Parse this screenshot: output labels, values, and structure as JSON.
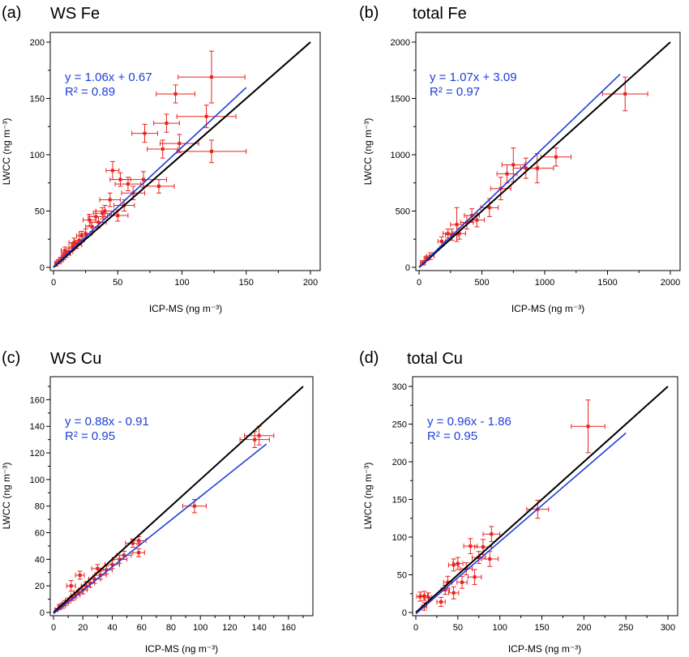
{
  "chart_data": [
    {
      "type": "scatter",
      "panel_label": "(a)",
      "title": "WS Fe",
      "xlabel": "ICP-MS (ng m⁻³)",
      "ylabel": "LWCC (ng m⁻³)",
      "xlim": [
        0,
        200
      ],
      "ylim": [
        0,
        200
      ],
      "xticks": [
        0,
        50,
        100,
        150,
        200
      ],
      "yticks": [
        0,
        50,
        100,
        150,
        200
      ],
      "equation": "y = 1.06x + 0.67",
      "r2": "R² = 0.89",
      "fit_line": {
        "slope": 1.06,
        "intercept": 0.67,
        "x_range": [
          0,
          150
        ]
      },
      "one_to_one": {
        "x_range": [
          0,
          200
        ]
      },
      "points": [
        {
          "x": 123,
          "y": 169,
          "xerr": 26,
          "yerr": 23
        },
        {
          "x": 95,
          "y": 154,
          "xerr": 15,
          "yerr": 8
        },
        {
          "x": 119,
          "y": 134,
          "xerr": 23,
          "yerr": 10
        },
        {
          "x": 88,
          "y": 128,
          "xerr": 10,
          "yerr": 8
        },
        {
          "x": 71,
          "y": 119,
          "xerr": 10,
          "yerr": 8
        },
        {
          "x": 123,
          "y": 103,
          "xerr": 27,
          "yerr": 10
        },
        {
          "x": 98,
          "y": 110,
          "xerr": 15,
          "yerr": 8
        },
        {
          "x": 85,
          "y": 105,
          "xerr": 12,
          "yerr": 8
        },
        {
          "x": 46,
          "y": 86,
          "xerr": 5,
          "yerr": 8
        },
        {
          "x": 70,
          "y": 78,
          "xerr": 18,
          "yerr": 7
        },
        {
          "x": 58,
          "y": 74,
          "xerr": 10,
          "yerr": 6
        },
        {
          "x": 82,
          "y": 72,
          "xerr": 12,
          "yerr": 6
        },
        {
          "x": 52,
          "y": 78,
          "xerr": 8,
          "yerr": 6
        },
        {
          "x": 44,
          "y": 60,
          "xerr": 8,
          "yerr": 6
        },
        {
          "x": 38,
          "y": 48,
          "xerr": 7,
          "yerr": 5
        },
        {
          "x": 55,
          "y": 55,
          "xerr": 8,
          "yerr": 5
        },
        {
          "x": 50,
          "y": 46,
          "xerr": 8,
          "yerr": 5
        },
        {
          "x": 33,
          "y": 45,
          "xerr": 6,
          "yerr": 5
        },
        {
          "x": 30,
          "y": 36,
          "xerr": 5,
          "yerr": 4
        },
        {
          "x": 28,
          "y": 42,
          "xerr": 5,
          "yerr": 5
        },
        {
          "x": 25,
          "y": 30,
          "xerr": 5,
          "yerr": 4
        },
        {
          "x": 22,
          "y": 28,
          "xerr": 4,
          "yerr": 4
        },
        {
          "x": 20,
          "y": 24,
          "xerr": 4,
          "yerr": 4
        },
        {
          "x": 18,
          "y": 20,
          "xerr": 4,
          "yerr": 3
        },
        {
          "x": 15,
          "y": 18,
          "xerr": 3,
          "yerr": 3
        },
        {
          "x": 12,
          "y": 14,
          "xerr": 3,
          "yerr": 3
        },
        {
          "x": 10,
          "y": 12,
          "xerr": 3,
          "yerr": 3
        },
        {
          "x": 8,
          "y": 10,
          "xerr": 2,
          "yerr": 3
        },
        {
          "x": 6,
          "y": 7,
          "xerr": 2,
          "yerr": 2
        },
        {
          "x": 4,
          "y": 5,
          "xerr": 2,
          "yerr": 2
        },
        {
          "x": 2,
          "y": 3,
          "xerr": 1,
          "yerr": 2
        },
        {
          "x": 35,
          "y": 40,
          "xerr": 6,
          "yerr": 5
        },
        {
          "x": 40,
          "y": 50,
          "xerr": 7,
          "yerr": 5
        },
        {
          "x": 62,
          "y": 66,
          "xerr": 9,
          "yerr": 6
        },
        {
          "x": 16,
          "y": 22,
          "xerr": 4,
          "yerr": 4
        },
        {
          "x": 9,
          "y": 15,
          "xerr": 3,
          "yerr": 3
        }
      ]
    },
    {
      "type": "scatter",
      "panel_label": "(b)",
      "title": "total Fe",
      "xlabel": "ICP-MS (ng m⁻³)",
      "ylabel": "LWCC (ng m⁻³)",
      "xlim": [
        0,
        2000
      ],
      "ylim": [
        0,
        2000
      ],
      "xticks": [
        0,
        500,
        1000,
        1500,
        2000
      ],
      "yticks": [
        0,
        500,
        1000,
        1500,
        2000
      ],
      "equation": "y = 1.07x + 3.09",
      "r2": "R² = 0.97",
      "fit_line": {
        "slope": 1.07,
        "intercept": 3.09,
        "x_range": [
          0,
          1600
        ]
      },
      "one_to_one": {
        "x_range": [
          0,
          2000
        ]
      },
      "points": [
        {
          "x": 1640,
          "y": 1540,
          "xerr": 180,
          "yerr": 150
        },
        {
          "x": 1090,
          "y": 980,
          "xerr": 120,
          "yerr": 80
        },
        {
          "x": 940,
          "y": 880,
          "xerr": 130,
          "yerr": 130
        },
        {
          "x": 850,
          "y": 880,
          "xerr": 100,
          "yerr": 90
        },
        {
          "x": 750,
          "y": 910,
          "xerr": 90,
          "yerr": 150
        },
        {
          "x": 700,
          "y": 830,
          "xerr": 80,
          "yerr": 80
        },
        {
          "x": 650,
          "y": 700,
          "xerr": 80,
          "yerr": 100
        },
        {
          "x": 560,
          "y": 530,
          "xerr": 70,
          "yerr": 80
        },
        {
          "x": 460,
          "y": 420,
          "xerr": 60,
          "yerr": 60
        },
        {
          "x": 420,
          "y": 460,
          "xerr": 60,
          "yerr": 60
        },
        {
          "x": 380,
          "y": 400,
          "xerr": 50,
          "yerr": 60
        },
        {
          "x": 300,
          "y": 380,
          "xerr": 50,
          "yerr": 150
        },
        {
          "x": 260,
          "y": 290,
          "xerr": 50,
          "yerr": 50
        },
        {
          "x": 230,
          "y": 300,
          "xerr": 40,
          "yerr": 40
        },
        {
          "x": 180,
          "y": 230,
          "xerr": 30,
          "yerr": 40
        },
        {
          "x": 90,
          "y": 100,
          "xerr": 30,
          "yerr": 30
        },
        {
          "x": 60,
          "y": 80,
          "xerr": 20,
          "yerr": 20
        },
        {
          "x": 30,
          "y": 40,
          "xerr": 20,
          "yerr": 20
        },
        {
          "x": 320,
          "y": 300,
          "xerr": 50,
          "yerr": 50
        }
      ]
    },
    {
      "type": "scatter",
      "panel_label": "(c)",
      "title": "WS Cu",
      "xlabel": "ICP-MS (ng m⁻³)",
      "ylabel": "LWCC (ng m⁻³)",
      "xlim": [
        0,
        170
      ],
      "ylim": [
        0,
        170
      ],
      "xticks": [
        0,
        20,
        40,
        60,
        80,
        100,
        120,
        140,
        160
      ],
      "yticks": [
        0,
        20,
        40,
        60,
        80,
        100,
        120,
        140,
        160
      ],
      "equation": "y = 0.88x - 0.91",
      "r2": "R² = 0.95",
      "fit_line": {
        "slope": 0.88,
        "intercept": -0.91,
        "x_range": [
          0,
          145
        ]
      },
      "one_to_one": {
        "x_range": [
          0,
          170
        ]
      },
      "points": [
        {
          "x": 140,
          "y": 133,
          "xerr": 10,
          "yerr": 7
        },
        {
          "x": 137,
          "y": 130,
          "xerr": 10,
          "yerr": 6
        },
        {
          "x": 96,
          "y": 80,
          "xerr": 8,
          "yerr": 5
        },
        {
          "x": 58,
          "y": 54,
          "xerr": 5,
          "yerr": 3
        },
        {
          "x": 54,
          "y": 52,
          "xerr": 5,
          "yerr": 3
        },
        {
          "x": 58,
          "y": 45,
          "xerr": 4,
          "yerr": 3
        },
        {
          "x": 45,
          "y": 40,
          "xerr": 5,
          "yerr": 3
        },
        {
          "x": 40,
          "y": 36,
          "xerr": 5,
          "yerr": 3
        },
        {
          "x": 36,
          "y": 32,
          "xerr": 4,
          "yerr": 3
        },
        {
          "x": 32,
          "y": 28,
          "xerr": 4,
          "yerr": 3
        },
        {
          "x": 28,
          "y": 25,
          "xerr": 4,
          "yerr": 3
        },
        {
          "x": 25,
          "y": 22,
          "xerr": 3,
          "yerr": 3
        },
        {
          "x": 22,
          "y": 20,
          "xerr": 3,
          "yerr": 3
        },
        {
          "x": 20,
          "y": 17,
          "xerr": 3,
          "yerr": 3
        },
        {
          "x": 17,
          "y": 15,
          "xerr": 3,
          "yerr": 2
        },
        {
          "x": 15,
          "y": 13,
          "xerr": 3,
          "yerr": 2
        },
        {
          "x": 13,
          "y": 11,
          "xerr": 2,
          "yerr": 2
        },
        {
          "x": 10,
          "y": 9,
          "xerr": 2,
          "yerr": 2
        },
        {
          "x": 8,
          "y": 7,
          "xerr": 2,
          "yerr": 2
        },
        {
          "x": 6,
          "y": 5,
          "xerr": 2,
          "yerr": 2
        },
        {
          "x": 4,
          "y": 4,
          "xerr": 1,
          "yerr": 2
        },
        {
          "x": 2,
          "y": 2,
          "xerr": 1,
          "yerr": 1
        },
        {
          "x": 12,
          "y": 20,
          "xerr": 3,
          "yerr": 4
        },
        {
          "x": 18,
          "y": 28,
          "xerr": 3,
          "yerr": 3
        },
        {
          "x": 30,
          "y": 33,
          "xerr": 4,
          "yerr": 3
        },
        {
          "x": 48,
          "y": 43,
          "xerr": 5,
          "yerr": 3
        }
      ]
    },
    {
      "type": "scatter",
      "panel_label": "(d)",
      "title": "total Cu",
      "xlabel": "ICP-MS (ng m⁻³)",
      "ylabel": "LWCC (ng m⁻³)",
      "xlim": [
        0,
        300
      ],
      "ylim": [
        0,
        300
      ],
      "xticks": [
        0,
        50,
        100,
        150,
        200,
        250,
        300
      ],
      "yticks": [
        0,
        50,
        100,
        150,
        200,
        250,
        300
      ],
      "equation": "y = 0.96x - 1.86",
      "r2": "R² = 0.95",
      "fit_line": {
        "slope": 0.96,
        "intercept": -1.86,
        "x_range": [
          0,
          250
        ]
      },
      "one_to_one": {
        "x_range": [
          0,
          300
        ]
      },
      "points": [
        {
          "x": 205,
          "y": 247,
          "xerr": 20,
          "yerr": 35
        },
        {
          "x": 145,
          "y": 137,
          "xerr": 13,
          "yerr": 12
        },
        {
          "x": 90,
          "y": 104,
          "xerr": 10,
          "yerr": 10
        },
        {
          "x": 88,
          "y": 71,
          "xerr": 10,
          "yerr": 10
        },
        {
          "x": 80,
          "y": 87,
          "xerr": 10,
          "yerr": 10
        },
        {
          "x": 75,
          "y": 73,
          "xerr": 8,
          "yerr": 8
        },
        {
          "x": 65,
          "y": 88,
          "xerr": 8,
          "yerr": 10
        },
        {
          "x": 70,
          "y": 47,
          "xerr": 8,
          "yerr": 10
        },
        {
          "x": 60,
          "y": 58,
          "xerr": 7,
          "yerr": 8
        },
        {
          "x": 55,
          "y": 40,
          "xerr": 6,
          "yerr": 8
        },
        {
          "x": 50,
          "y": 65,
          "xerr": 6,
          "yerr": 8
        },
        {
          "x": 45,
          "y": 63,
          "xerr": 6,
          "yerr": 8
        },
        {
          "x": 45,
          "y": 26,
          "xerr": 6,
          "yerr": 8
        },
        {
          "x": 38,
          "y": 40,
          "xerr": 5,
          "yerr": 8
        },
        {
          "x": 30,
          "y": 14,
          "xerr": 5,
          "yerr": 6
        },
        {
          "x": 35,
          "y": 30,
          "xerr": 5,
          "yerr": 6
        },
        {
          "x": 15,
          "y": 20,
          "xerr": 4,
          "yerr": 6
        },
        {
          "x": 10,
          "y": 22,
          "xerr": 4,
          "yerr": 6
        },
        {
          "x": 5,
          "y": 21,
          "xerr": 4,
          "yerr": 6
        },
        {
          "x": 10,
          "y": 8,
          "xerr": 3,
          "yerr": 5
        }
      ]
    }
  ],
  "colors": {
    "points": "#e8231f",
    "fit_line": "#1f3fd8",
    "equation_text": "#1f3fd8",
    "one_to_one": "#000000"
  }
}
